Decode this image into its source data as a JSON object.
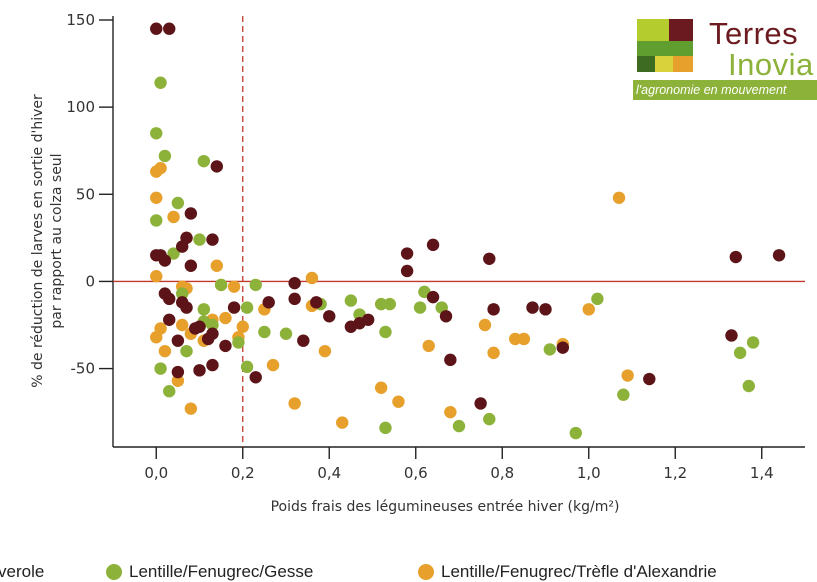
{
  "logo": {
    "name_line1": "Terres",
    "name_line2": "Inovia",
    "tagline": "l'agronomie en mouvement",
    "colors": {
      "dark_red": "#6b1b1f",
      "green": "#8cb23a",
      "light_green": "#b5cc2f",
      "dark_green": "#4a7a2a",
      "orange": "#e6a02b"
    }
  },
  "legend": {
    "items": [
      {
        "label": "Féverole",
        "visible_text": "verole",
        "color": "#5c1418"
      },
      {
        "label": "Lentille/Fenugrec/Gesse",
        "color": "#8cb23a"
      },
      {
        "label": "Lentille/Fenugrec/Trèfle d'Alexandrie",
        "color": "#e6a02b"
      }
    ]
  },
  "chart_data": {
    "type": "scatter",
    "xlabel": "Poids frais des légumineuses entrée hiver (kg/m²)",
    "ylabel_line1": "% de réduction de larves en sortie d'hiver",
    "ylabel_line2": "par rapport au colza seul",
    "xlim": [
      -0.1,
      1.5
    ],
    "ylim": [
      -95,
      150
    ],
    "x_ticks": [
      0.0,
      0.2,
      0.4,
      0.6,
      0.8,
      1.0,
      1.2,
      1.4
    ],
    "x_tick_labels": [
      "0,0",
      "0,2",
      "0,4",
      "0,6",
      "0,8",
      "1,0",
      "1,2",
      "1,4"
    ],
    "y_ticks": [
      150,
      100,
      50,
      0,
      -50
    ],
    "y_tick_labels": [
      "150",
      "100",
      "50",
      "0",
      "-50"
    ],
    "reference_lines": {
      "horizontal_y": 0,
      "horizontal_color": "#c0392b",
      "vertical_x": 0.2,
      "vertical_color": "#c0392b",
      "vertical_style": "dashed"
    },
    "series": [
      {
        "name": "Féverole",
        "color": "#5c1418",
        "points": [
          [
            0.0,
            145
          ],
          [
            0.03,
            145
          ],
          [
            0.14,
            66
          ],
          [
            0.0,
            15
          ],
          [
            0.01,
            15
          ],
          [
            0.02,
            12
          ],
          [
            0.06,
            20
          ],
          [
            0.07,
            25
          ],
          [
            0.08,
            39
          ],
          [
            0.08,
            9
          ],
          [
            0.13,
            24
          ],
          [
            0.02,
            -7
          ],
          [
            0.03,
            -10
          ],
          [
            0.06,
            -12
          ],
          [
            0.07,
            -15
          ],
          [
            0.09,
            -27
          ],
          [
            0.1,
            -26
          ],
          [
            0.13,
            -30
          ],
          [
            0.03,
            -22
          ],
          [
            0.05,
            -34
          ],
          [
            0.12,
            -33
          ],
          [
            0.05,
            -52
          ],
          [
            0.1,
            -51
          ],
          [
            0.13,
            -48
          ],
          [
            0.16,
            -37
          ],
          [
            0.18,
            -15
          ],
          [
            0.23,
            -55
          ],
          [
            0.26,
            -12
          ],
          [
            0.32,
            -1
          ],
          [
            0.32,
            -10
          ],
          [
            0.34,
            -34
          ],
          [
            0.37,
            -12
          ],
          [
            0.4,
            -20
          ],
          [
            0.45,
            -26
          ],
          [
            0.47,
            -24
          ],
          [
            0.49,
            -22
          ],
          [
            0.58,
            16
          ],
          [
            0.58,
            6
          ],
          [
            0.64,
            21
          ],
          [
            0.64,
            -9
          ],
          [
            0.67,
            -20
          ],
          [
            0.68,
            -45
          ],
          [
            0.75,
            -70
          ],
          [
            0.77,
            13
          ],
          [
            0.78,
            -16
          ],
          [
            0.87,
            -15
          ],
          [
            0.9,
            -16
          ],
          [
            0.94,
            -38
          ],
          [
            1.14,
            -56
          ],
          [
            1.33,
            -31
          ],
          [
            1.34,
            14
          ],
          [
            1.44,
            15
          ]
        ]
      },
      {
        "name": "Lentille/Fenugrec/Gesse",
        "color": "#8cb23a",
        "points": [
          [
            0.0,
            85
          ],
          [
            0.01,
            114
          ],
          [
            0.02,
            72
          ],
          [
            0.05,
            45
          ],
          [
            0.0,
            35
          ],
          [
            0.04,
            16
          ],
          [
            0.1,
            24
          ],
          [
            0.11,
            69
          ],
          [
            0.15,
            -2
          ],
          [
            0.06,
            -7
          ],
          [
            0.11,
            -16
          ],
          [
            0.01,
            -50
          ],
          [
            0.03,
            -63
          ],
          [
            0.07,
            -40
          ],
          [
            0.11,
            -23
          ],
          [
            0.13,
            -25
          ],
          [
            0.19,
            -35
          ],
          [
            0.21,
            -15
          ],
          [
            0.23,
            -2
          ],
          [
            0.21,
            -49
          ],
          [
            0.25,
            -29
          ],
          [
            0.3,
            -30
          ],
          [
            0.38,
            -13
          ],
          [
            0.45,
            -11
          ],
          [
            0.47,
            -19
          ],
          [
            0.52,
            -13
          ],
          [
            0.54,
            -13
          ],
          [
            0.53,
            -29
          ],
          [
            0.53,
            -84
          ],
          [
            0.61,
            -15
          ],
          [
            0.62,
            -6
          ],
          [
            0.66,
            -15
          ],
          [
            0.7,
            -83
          ],
          [
            0.77,
            -79
          ],
          [
            0.91,
            -39
          ],
          [
            0.97,
            -87
          ],
          [
            1.02,
            -10
          ],
          [
            1.08,
            -65
          ],
          [
            1.35,
            -41
          ],
          [
            1.37,
            -60
          ],
          [
            1.38,
            -35
          ]
        ]
      },
      {
        "name": "Lentille/Fenugrec/Trèfle d'Alexandrie",
        "color": "#e6a02b",
        "points": [
          [
            0.0,
            63
          ],
          [
            0.01,
            65
          ],
          [
            0.0,
            48
          ],
          [
            0.04,
            37
          ],
          [
            0.07,
            25
          ],
          [
            0.0,
            3
          ],
          [
            0.06,
            -3
          ],
          [
            0.07,
            -4
          ],
          [
            0.14,
            9
          ],
          [
            0.15,
            -2
          ],
          [
            0.18,
            -3
          ],
          [
            0.01,
            -27
          ],
          [
            0.0,
            -32
          ],
          [
            0.02,
            -40
          ],
          [
            0.05,
            -57
          ],
          [
            0.06,
            -25
          ],
          [
            0.08,
            -30
          ],
          [
            0.11,
            -34
          ],
          [
            0.13,
            -22
          ],
          [
            0.16,
            -21
          ],
          [
            0.2,
            -26
          ],
          [
            0.19,
            -32
          ],
          [
            0.08,
            -73
          ],
          [
            0.25,
            -16
          ],
          [
            0.27,
            -48
          ],
          [
            0.32,
            -70
          ],
          [
            0.36,
            2
          ],
          [
            0.36,
            -14
          ],
          [
            0.39,
            -40
          ],
          [
            0.43,
            -81
          ],
          [
            0.52,
            -61
          ],
          [
            0.56,
            -69
          ],
          [
            0.63,
            -37
          ],
          [
            0.68,
            -75
          ],
          [
            0.76,
            -25
          ],
          [
            0.78,
            -41
          ],
          [
            0.83,
            -33
          ],
          [
            0.85,
            -33
          ],
          [
            0.94,
            -36
          ],
          [
            1.0,
            -16
          ],
          [
            1.07,
            48
          ],
          [
            1.09,
            -54
          ]
        ]
      }
    ]
  }
}
